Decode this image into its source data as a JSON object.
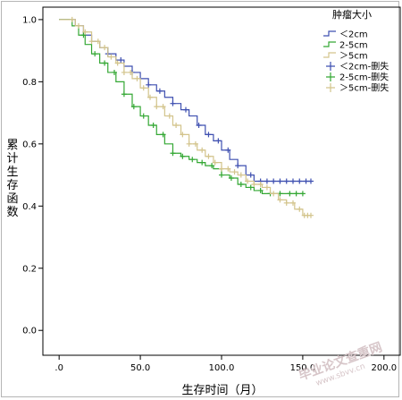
{
  "chart_data": {
    "type": "line",
    "title": "",
    "xlabel": "生存时间（月）",
    "ylabel": "累计生存函数",
    "xlim": [
      -10,
      210
    ],
    "ylim": [
      -0.08,
      1.04
    ],
    "x_ticks": [
      ".0",
      "50.0",
      "100.0",
      "150.0",
      "200.0"
    ],
    "x_tick_values": [
      0,
      50,
      100,
      150,
      200
    ],
    "y_ticks": [
      "0.0",
      "0.2",
      "0.4",
      "0.6",
      "0.8",
      "1.0"
    ],
    "y_tick_values": [
      0,
      0.2,
      0.4,
      0.6,
      0.8,
      1.0
    ],
    "legend": {
      "title": "肿瘤大小",
      "placement": "top-right",
      "entries": [
        "＜2cm",
        "2-5cm",
        "＞5cm",
        "＜2cm-删失",
        "2-5cm-删失",
        "＞5cm-删失"
      ]
    },
    "series": [
      {
        "name": "＜2cm",
        "color": "#3e4fb0",
        "points": [
          [
            0,
            1.0
          ],
          [
            5,
            1.0
          ],
          [
            10,
            0.98
          ],
          [
            15,
            0.95
          ],
          [
            20,
            0.93
          ],
          [
            25,
            0.91
          ],
          [
            30,
            0.89
          ],
          [
            35,
            0.87
          ],
          [
            40,
            0.85
          ],
          [
            45,
            0.83
          ],
          [
            50,
            0.81
          ],
          [
            55,
            0.79
          ],
          [
            60,
            0.77
          ],
          [
            65,
            0.75
          ],
          [
            70,
            0.73
          ],
          [
            75,
            0.71
          ],
          [
            80,
            0.69
          ],
          [
            85,
            0.66
          ],
          [
            90,
            0.63
          ],
          [
            95,
            0.61
          ],
          [
            100,
            0.58
          ],
          [
            105,
            0.55
          ],
          [
            110,
            0.53
          ],
          [
            115,
            0.5
          ],
          [
            120,
            0.48
          ],
          [
            125,
            0.48
          ],
          [
            135,
            0.48
          ],
          [
            145,
            0.48
          ],
          [
            155,
            0.48
          ]
        ],
        "censored_x": [
          30,
          38,
          45,
          55,
          62,
          70,
          78,
          86,
          92,
          98,
          104,
          110,
          118,
          124,
          128,
          132,
          136,
          140,
          144,
          148,
          152,
          155
        ]
      },
      {
        "name": "2-5cm",
        "color": "#34a834",
        "points": [
          [
            0,
            1.0
          ],
          [
            3,
            1.0
          ],
          [
            8,
            0.98
          ],
          [
            12,
            0.95
          ],
          [
            16,
            0.92
          ],
          [
            20,
            0.89
          ],
          [
            25,
            0.86
          ],
          [
            30,
            0.83
          ],
          [
            35,
            0.8
          ],
          [
            40,
            0.76
          ],
          [
            45,
            0.72
          ],
          [
            50,
            0.69
          ],
          [
            55,
            0.66
          ],
          [
            60,
            0.63
          ],
          [
            65,
            0.6
          ],
          [
            70,
            0.57
          ],
          [
            75,
            0.56
          ],
          [
            80,
            0.55
          ],
          [
            85,
            0.54
          ],
          [
            90,
            0.53
          ],
          [
            95,
            0.52
          ],
          [
            100,
            0.5
          ],
          [
            105,
            0.49
          ],
          [
            110,
            0.47
          ],
          [
            115,
            0.46
          ],
          [
            120,
            0.45
          ],
          [
            125,
            0.44
          ],
          [
            135,
            0.44
          ],
          [
            150,
            0.44
          ]
        ],
        "censored_x": [
          15,
          22,
          28,
          34,
          40,
          46,
          52,
          58,
          64,
          70,
          76,
          82,
          88,
          94,
          100,
          106,
          112,
          118,
          124,
          130,
          136,
          142,
          146,
          150
        ]
      },
      {
        "name": "＞5cm",
        "color": "#d3c48c",
        "points": [
          [
            0,
            1.0
          ],
          [
            5,
            1.0
          ],
          [
            10,
            0.98
          ],
          [
            15,
            0.96
          ],
          [
            20,
            0.93
          ],
          [
            25,
            0.91
          ],
          [
            30,
            0.88
          ],
          [
            35,
            0.86
          ],
          [
            40,
            0.83
          ],
          [
            45,
            0.81
          ],
          [
            50,
            0.78
          ],
          [
            55,
            0.75
          ],
          [
            60,
            0.72
          ],
          [
            65,
            0.69
          ],
          [
            70,
            0.66
          ],
          [
            75,
            0.63
          ],
          [
            80,
            0.6
          ],
          [
            85,
            0.58
          ],
          [
            90,
            0.56
          ],
          [
            95,
            0.54
          ],
          [
            100,
            0.52
          ],
          [
            105,
            0.51
          ],
          [
            110,
            0.5
          ],
          [
            115,
            0.48
          ],
          [
            120,
            0.47
          ],
          [
            125,
            0.46
          ],
          [
            130,
            0.44
          ],
          [
            135,
            0.42
          ],
          [
            140,
            0.41
          ],
          [
            145,
            0.39
          ],
          [
            150,
            0.37
          ],
          [
            155,
            0.37
          ]
        ],
        "censored_x": [
          8,
          12,
          16,
          20,
          24,
          28,
          32,
          36,
          40,
          44,
          48,
          52,
          56,
          60,
          64,
          68,
          72,
          76,
          80,
          84,
          88,
          92,
          96,
          100,
          104,
          108,
          112,
          116,
          120,
          124,
          128,
          132,
          136,
          140,
          144,
          148,
          151,
          153,
          155
        ]
      }
    ]
  },
  "watermark": {
    "text": "毕业论文查重网",
    "sub": "www.sbvv.cn"
  }
}
